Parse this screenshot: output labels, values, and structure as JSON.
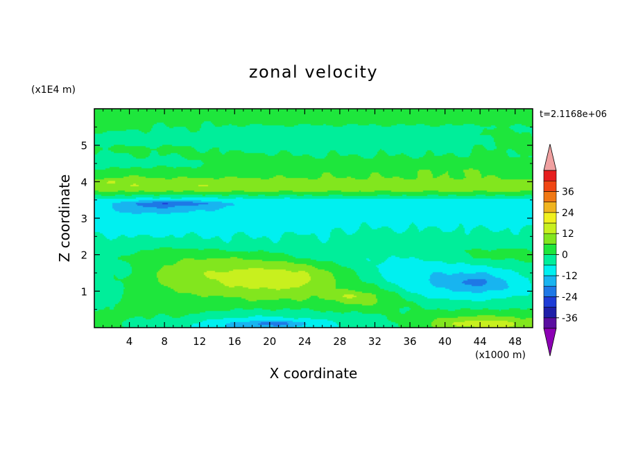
{
  "chart_data": {
    "type": "heatmap",
    "title": "zonal velocity",
    "xlabel": "X coordinate",
    "ylabel": "Z coordinate",
    "x_units": "(x1000 m)",
    "y_units": "(x1E4 m)",
    "time_label": "t=2.1168e+06",
    "xlim": [
      0,
      50
    ],
    "ylim": [
      0,
      6
    ],
    "x_ticks": [
      4,
      8,
      12,
      16,
      20,
      24,
      28,
      32,
      36,
      40,
      44,
      48
    ],
    "x_tick_labels": [
      "4",
      "8",
      "12",
      "16",
      "20",
      "24",
      "28",
      "32",
      "36",
      "40",
      "44",
      "48"
    ],
    "y_ticks": [
      1,
      2,
      3,
      4,
      5
    ],
    "y_tick_labels": [
      "1",
      "2",
      "3",
      "4",
      "5"
    ],
    "colorbar": {
      "levels": [
        -36,
        -30,
        -24,
        -18,
        -12,
        -6,
        0,
        6,
        12,
        18,
        24,
        30,
        36
      ],
      "tick_values": [
        -36,
        -24,
        -12,
        0,
        12,
        24,
        36
      ],
      "tick_labels": [
        "-36",
        "-24",
        "-12",
        "0",
        "12",
        "24",
        "36"
      ],
      "colors": [
        "#5a0ea0",
        "#1f1fa8",
        "#1e3cd6",
        "#1e78e6",
        "#18b4f0",
        "#00f0f0",
        "#00ee9a",
        "#1ee63c",
        "#82e61e",
        "#c8f01e",
        "#f0f01e",
        "#f0b41e",
        "#f07814",
        "#f04614",
        "#e61e1e"
      ],
      "under_color": "#8c00b4",
      "over_color": "#f0a0a0"
    },
    "field": {
      "x": [
        0,
        2,
        4,
        6,
        8,
        10,
        12,
        14,
        16,
        18,
        20,
        22,
        24,
        26,
        28,
        30,
        32,
        34,
        36,
        38,
        40,
        42,
        44,
        46,
        48,
        50
      ],
      "z": [
        0.1,
        0.3,
        0.5,
        0.7,
        0.9,
        1.1,
        1.3,
        1.5,
        1.7,
        1.9,
        2.1,
        2.3,
        2.5,
        2.7,
        2.9,
        3.1,
        3.3,
        3.5,
        3.7,
        3.9,
        4.1,
        4.3,
        4.5,
        4.7,
        4.9,
        5.1,
        5.3,
        5.5,
        5.7,
        5.9
      ],
      "values": [
        [
          5,
          3,
          -2,
          -2,
          -2,
          -4,
          -8,
          -10,
          -13,
          -14,
          -14,
          -12,
          -10,
          -8,
          -6,
          -4,
          -3,
          -1,
          2,
          5,
          8,
          10,
          12,
          12,
          10,
          8
        ],
        [
          3,
          2,
          0,
          0,
          0,
          0,
          -2,
          -4,
          -5,
          -6,
          -6,
          -5,
          -4,
          -4,
          -3,
          -2,
          -2,
          0,
          2,
          4,
          5,
          6,
          7,
          7,
          6,
          5
        ],
        [
          0,
          0,
          2,
          2,
          2,
          2,
          2,
          1,
          0,
          0,
          0,
          0,
          0,
          1,
          2,
          2,
          3,
          1,
          0,
          0,
          0,
          0,
          0,
          0,
          0,
          0
        ],
        [
          -2,
          -1,
          2,
          3,
          3,
          2,
          2,
          3,
          4,
          5,
          5,
          5,
          5,
          5,
          6,
          8,
          7,
          4,
          0,
          -3,
          -4,
          -5,
          -5,
          -4,
          -3,
          -2
        ],
        [
          -2,
          -1,
          2,
          3,
          4,
          5,
          6,
          7,
          7,
          8,
          8,
          8,
          7,
          6,
          8,
          9,
          6,
          2,
          -4,
          -7,
          -9,
          -10,
          -10,
          -9,
          -7,
          -5
        ],
        [
          -3,
          -2,
          1,
          3,
          6,
          8,
          9,
          10,
          10,
          11,
          11,
          11,
          10,
          8,
          5,
          3,
          1,
          -4,
          -8,
          -11,
          -13,
          -15,
          -16,
          -14,
          -10,
          -6
        ],
        [
          -2,
          -1,
          1,
          3,
          7,
          9,
          10,
          11,
          12,
          12,
          12,
          12,
          11,
          9,
          5,
          1,
          -3,
          -7,
          -10,
          -12,
          -14,
          -15,
          -15,
          -13,
          -9,
          -5
        ],
        [
          -2,
          -1,
          0,
          3,
          7,
          9,
          11,
          12,
          12,
          13,
          13,
          12,
          11,
          8,
          4,
          -1,
          -5,
          -8,
          -10,
          -11,
          -12,
          -12,
          -12,
          -10,
          -7,
          -4
        ],
        [
          -2,
          -1,
          0,
          2,
          6,
          8,
          9,
          10,
          10,
          10,
          10,
          9,
          7,
          4,
          0,
          -3,
          -6,
          -8,
          -9,
          -9,
          -8,
          -7,
          -6,
          -5,
          -3,
          -1
        ],
        [
          -3,
          -1,
          1,
          2,
          4,
          5,
          6,
          6,
          6,
          5,
          4,
          2,
          0,
          -2,
          -4,
          -5,
          -6,
          -6,
          -6,
          -5,
          -4,
          -2,
          0,
          1,
          1,
          1
        ],
        [
          -4,
          -3,
          -1,
          1,
          2,
          2,
          2,
          1,
          0,
          0,
          -1,
          -2,
          -3,
          -4,
          -4,
          -5,
          -5,
          -4,
          -3,
          -2,
          -1,
          0,
          1,
          1,
          1,
          0
        ],
        [
          -5,
          -5,
          -4,
          -4,
          -3,
          -4,
          -5,
          -5,
          -5,
          -5,
          -5,
          -5,
          -5,
          -5,
          -5,
          -5,
          -4,
          -4,
          -4,
          -4,
          -4,
          -3,
          -3,
          -3,
          -3,
          -3
        ],
        [
          -5,
          -6,
          -6,
          -6,
          -6,
          -6,
          -6,
          -6,
          -6,
          -6,
          -6,
          -6,
          -5,
          -6,
          -6,
          -5,
          -5,
          -5,
          -5,
          -5,
          -5,
          -5,
          -5,
          -5,
          -5,
          -5
        ],
        [
          -7,
          -7,
          -8,
          -8,
          -7,
          -7,
          -7,
          -7,
          -7,
          -7,
          -7,
          -7,
          -7,
          -7,
          -6,
          -6,
          -6,
          -6,
          -6,
          -6,
          -6,
          -6,
          -6,
          -6,
          -6,
          -6
        ],
        [
          -8,
          -9,
          -10,
          -10,
          -10,
          -9,
          -8,
          -8,
          -8,
          -8,
          -8,
          -8,
          -8,
          -8,
          -8,
          -7,
          -7,
          -7,
          -7,
          -7,
          -7,
          -7,
          -7,
          -7,
          -7,
          -7
        ],
        [
          -9,
          -10,
          -11,
          -11,
          -11,
          -10,
          -9,
          -9,
          -9,
          -9,
          -9,
          -9,
          -9,
          -9,
          -9,
          -8,
          -8,
          -8,
          -8,
          -8,
          -8,
          -8,
          -8,
          -8,
          -8,
          -8
        ],
        [
          -10,
          -11,
          -16,
          -18,
          -18,
          -17,
          -15,
          -13,
          -12,
          -11,
          -11,
          -10,
          -10,
          -10,
          -10,
          -10,
          -9,
          -9,
          -9,
          -9,
          -9,
          -9,
          -9,
          -9,
          -9,
          -9
        ],
        [
          -8,
          -9,
          -9,
          -10,
          -10,
          -10,
          -10,
          -10,
          -9,
          -9,
          -9,
          -9,
          -9,
          -8,
          -8,
          -8,
          -8,
          -8,
          -8,
          -8,
          -8,
          -8,
          -8,
          -8,
          -8,
          -8
        ],
        [
          5,
          5,
          5,
          5,
          5,
          5,
          5,
          5,
          5,
          5,
          5,
          5,
          5,
          5,
          5,
          5,
          5,
          5,
          5,
          5,
          5,
          5,
          5,
          5,
          5,
          5
        ],
        [
          10,
          11,
          12,
          12,
          11,
          11,
          12,
          12,
          11,
          11,
          11,
          11,
          11,
          11,
          11,
          10,
          10,
          10,
          10,
          10,
          11,
          11,
          11,
          11,
          10,
          10
        ],
        [
          5,
          6,
          7,
          7,
          6,
          6,
          6,
          6,
          6,
          6,
          6,
          6,
          6,
          6,
          6,
          6,
          6,
          6,
          6,
          6,
          6,
          6,
          6,
          6,
          5,
          5
        ],
        [
          1,
          1,
          2,
          2,
          2,
          2,
          2,
          2,
          3,
          3,
          3,
          4,
          5,
          5,
          5,
          5,
          5,
          5,
          5,
          6,
          6,
          6,
          6,
          5,
          5,
          4
        ],
        [
          -3,
          -3,
          -2,
          -2,
          -2,
          -2,
          -1,
          1,
          2,
          2,
          2,
          2,
          2,
          2,
          2,
          2,
          2,
          2,
          2,
          3,
          3,
          3,
          3,
          3,
          2,
          2
        ],
        [
          -1,
          -1,
          0,
          0,
          0,
          0,
          1,
          1,
          1,
          1,
          1,
          0,
          0,
          0,
          0,
          0,
          0,
          0,
          0,
          0,
          0,
          0,
          1,
          1,
          0,
          0
        ],
        [
          1,
          1,
          1,
          1,
          1,
          1,
          0,
          0,
          -1,
          -1,
          -1,
          -1,
          -1,
          -1,
          -1,
          -1,
          -1,
          -1,
          -1,
          -1,
          -1,
          -1,
          0,
          0,
          1,
          1
        ],
        [
          -1,
          -2,
          -2,
          -2,
          -2,
          -2,
          -2,
          -2,
          -2,
          -2,
          -2,
          -2,
          -2,
          -2,
          -2,
          -2,
          -2,
          -2,
          -2,
          -2,
          -2,
          -2,
          -1,
          1,
          2,
          1
        ],
        [
          -1,
          -1,
          -1,
          -1,
          -1,
          -1,
          -1,
          -1,
          -1,
          -1,
          -1,
          -1,
          -1,
          -1,
          -1,
          -1,
          -1,
          -1,
          -1,
          -1,
          -1,
          -1,
          0,
          1,
          1,
          0
        ],
        [
          2,
          2,
          1,
          0,
          0,
          0,
          0,
          0,
          -1,
          -1,
          -1,
          -1,
          -1,
          -1,
          -1,
          -1,
          -1,
          -1,
          -1,
          -1,
          -1,
          -1,
          -1,
          0,
          0,
          -1
        ],
        [
          2,
          2,
          2,
          2,
          1,
          1,
          1,
          1,
          2,
          3,
          3,
          3,
          3,
          3,
          3,
          3,
          3,
          3,
          3,
          3,
          3,
          3,
          2,
          2,
          2,
          2
        ],
        [
          3,
          3,
          3,
          3,
          2,
          2,
          2,
          2,
          3,
          3,
          3,
          3,
          3,
          3,
          3,
          3,
          3,
          3,
          3,
          3,
          3,
          3,
          3,
          3,
          3,
          3
        ]
      ],
      "anomalies": [
        {
          "x": 20,
          "z": 1.3,
          "sx": 5,
          "sz": 0.25,
          "amp": 4
        },
        {
          "x": 29,
          "z": 0.85,
          "sx": 2,
          "sz": 0.1,
          "amp": 4
        },
        {
          "x": 43.5,
          "z": 1.25,
          "sx": 1.5,
          "sz": 0.1,
          "amp": -8
        },
        {
          "x": 9,
          "z": 3.4,
          "sx": 5,
          "sz": 0.06,
          "amp": -10
        },
        {
          "x": 21,
          "z": 0.12,
          "sx": 3,
          "sz": 0.08,
          "amp": -8
        },
        {
          "x": 44,
          "z": 0.12,
          "sx": 4,
          "sz": 0.08,
          "amp": 6
        },
        {
          "x": 2,
          "z": 4.0,
          "sx": 2,
          "sz": 0.06,
          "amp": 4
        }
      ]
    }
  }
}
